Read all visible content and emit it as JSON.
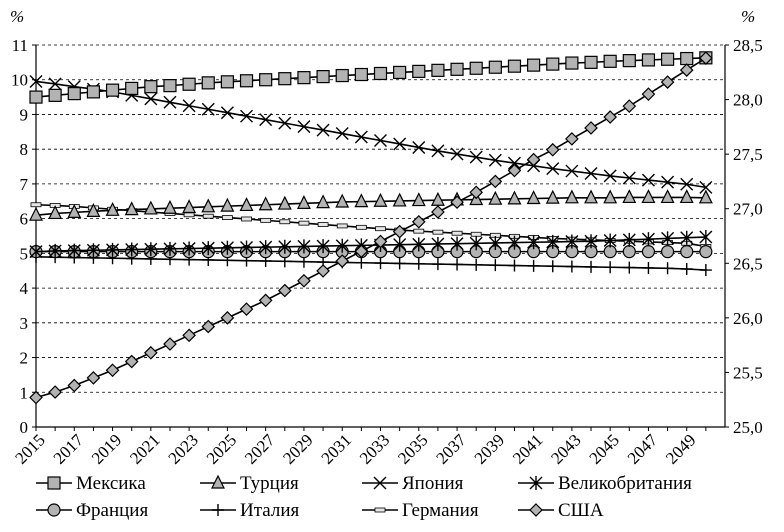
{
  "chart_data": {
    "type": "line",
    "x": [
      2015,
      2016,
      2017,
      2018,
      2019,
      2020,
      2021,
      2022,
      2023,
      2024,
      2025,
      2026,
      2027,
      2028,
      2029,
      2030,
      2031,
      2032,
      2033,
      2034,
      2035,
      2036,
      2037,
      2038,
      2039,
      2040,
      2041,
      2042,
      2043,
      2044,
      2045,
      2046,
      2047,
      2048,
      2049,
      2050
    ],
    "x_ticks": [
      "2015",
      "2017",
      "2019",
      "2021",
      "2023",
      "2025",
      "2027",
      "2029",
      "2031",
      "2033",
      "2035",
      "2037",
      "2039",
      "2041",
      "2043",
      "2045",
      "2047",
      "2049"
    ],
    "xlim": [
      2015,
      2051
    ],
    "y_left": {
      "unit": "%",
      "lim": [
        0,
        11
      ],
      "ticks": [
        "0",
        "1",
        "2",
        "3",
        "4",
        "5",
        "6",
        "7",
        "8",
        "9",
        "10",
        "11"
      ]
    },
    "y_right": {
      "unit": "%",
      "lim": [
        25.0,
        28.5
      ],
      "ticks": [
        "25,0",
        "25,5",
        "26,0",
        "26,5",
        "27,0",
        "27,5",
        "28,0",
        "28,5"
      ]
    },
    "grid": "horizontal dashed",
    "legend_position": "bottom",
    "series": [
      {
        "name": "Мексика",
        "axis": "left",
        "marker": "square",
        "color": "#b3b3b3",
        "values": [
          9.5,
          9.55,
          9.6,
          9.65,
          9.7,
          9.75,
          9.8,
          9.83,
          9.87,
          9.91,
          9.94,
          9.97,
          10.0,
          10.03,
          10.06,
          10.09,
          10.12,
          10.15,
          10.18,
          10.21,
          10.24,
          10.27,
          10.3,
          10.33,
          10.36,
          10.39,
          10.42,
          10.45,
          10.48,
          10.5,
          10.53,
          10.55,
          10.57,
          10.59,
          10.61,
          10.63
        ]
      },
      {
        "name": "Турция",
        "axis": "left",
        "marker": "triangle",
        "color": "#b3b3b3",
        "values": [
          6.1,
          6.15,
          6.18,
          6.21,
          6.24,
          6.26,
          6.28,
          6.3,
          6.32,
          6.34,
          6.36,
          6.38,
          6.4,
          6.42,
          6.44,
          6.46,
          6.48,
          6.49,
          6.5,
          6.51,
          6.52,
          6.53,
          6.54,
          6.55,
          6.56,
          6.57,
          6.58,
          6.59,
          6.6,
          6.6,
          6.6,
          6.61,
          6.61,
          6.61,
          6.61,
          6.6
        ]
      },
      {
        "name": "Япония",
        "axis": "left",
        "marker": "x",
        "color": "#000000",
        "values": [
          9.95,
          9.88,
          9.8,
          9.73,
          9.65,
          9.55,
          9.45,
          9.35,
          9.25,
          9.15,
          9.05,
          8.95,
          8.85,
          8.75,
          8.65,
          8.55,
          8.45,
          8.35,
          8.25,
          8.15,
          8.05,
          7.95,
          7.86,
          7.77,
          7.68,
          7.6,
          7.52,
          7.44,
          7.37,
          7.3,
          7.23,
          7.17,
          7.11,
          7.05,
          6.99,
          6.9
        ]
      },
      {
        "name": "Великобритания",
        "axis": "left",
        "marker": "asterisk",
        "color": "#000000",
        "values": [
          5.05,
          5.07,
          5.08,
          5.09,
          5.1,
          5.11,
          5.12,
          5.13,
          5.14,
          5.15,
          5.16,
          5.17,
          5.18,
          5.19,
          5.2,
          5.21,
          5.22,
          5.23,
          5.24,
          5.25,
          5.26,
          5.27,
          5.28,
          5.29,
          5.3,
          5.31,
          5.32,
          5.33,
          5.34,
          5.35,
          5.37,
          5.39,
          5.41,
          5.43,
          5.45,
          5.47
        ]
      },
      {
        "name": "Франция",
        "axis": "left",
        "marker": "circle",
        "color": "#b3b3b3",
        "values": [
          5.05,
          5.05,
          5.05,
          5.05,
          5.05,
          5.05,
          5.05,
          5.05,
          5.05,
          5.05,
          5.05,
          5.05,
          5.05,
          5.05,
          5.05,
          5.05,
          5.05,
          5.05,
          5.05,
          5.05,
          5.05,
          5.05,
          5.05,
          5.05,
          5.05,
          5.05,
          5.05,
          5.05,
          5.05,
          5.05,
          5.05,
          5.05,
          5.05,
          5.05,
          5.05,
          5.05
        ]
      },
      {
        "name": "Италия",
        "axis": "left",
        "marker": "plus",
        "color": "#000000",
        "values": [
          4.9,
          4.89,
          4.88,
          4.87,
          4.86,
          4.85,
          4.84,
          4.83,
          4.82,
          4.81,
          4.8,
          4.79,
          4.78,
          4.77,
          4.76,
          4.75,
          4.74,
          4.73,
          4.72,
          4.71,
          4.7,
          4.69,
          4.68,
          4.67,
          4.66,
          4.65,
          4.64,
          4.63,
          4.62,
          4.61,
          4.6,
          4.59,
          4.58,
          4.57,
          4.55,
          4.52
        ]
      },
      {
        "name": "Германия",
        "axis": "left",
        "marker": "dash",
        "color": "#000000",
        "values": [
          6.4,
          6.38,
          6.35,
          6.31,
          6.27,
          6.23,
          6.19,
          6.15,
          6.11,
          6.07,
          6.03,
          5.99,
          5.95,
          5.91,
          5.87,
          5.83,
          5.79,
          5.75,
          5.71,
          5.67,
          5.64,
          5.61,
          5.58,
          5.55,
          5.52,
          5.49,
          5.46,
          5.43,
          5.41,
          5.39,
          5.37,
          5.35,
          5.33,
          5.31,
          5.29,
          5.2
        ]
      },
      {
        "name": "США",
        "axis": "right",
        "marker": "diamond",
        "color": "#b3b3b3",
        "values": [
          25.27,
          25.32,
          25.38,
          25.45,
          25.52,
          25.6,
          25.68,
          25.76,
          25.84,
          25.92,
          26.0,
          26.08,
          26.16,
          26.25,
          26.34,
          26.43,
          26.52,
          26.61,
          26.7,
          26.79,
          26.88,
          26.97,
          27.06,
          27.15,
          27.25,
          27.35,
          27.45,
          27.54,
          27.64,
          27.74,
          27.84,
          27.94,
          28.05,
          28.16,
          28.27,
          28.38
        ]
      }
    ]
  }
}
